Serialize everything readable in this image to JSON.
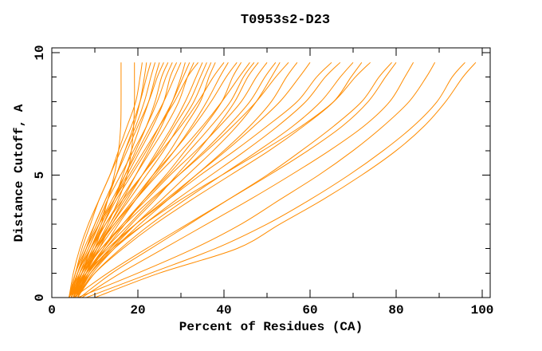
{
  "chart_data": {
    "type": "line",
    "title": "T0953s2-D23",
    "xlabel": "Percent of Residues (CA)",
    "ylabel": "Distance Cutoff, A",
    "xlim": [
      0,
      101.85
    ],
    "ylim": [
      0,
      10.195
    ],
    "grid": false,
    "legend": null,
    "line_color": "#FF8C00",
    "frame_color": "#000000",
    "text_color": "#000000",
    "x_major_ticks": [
      0,
      20,
      40,
      60,
      80,
      100
    ],
    "x_minor_ticks": [
      10,
      30,
      50,
      70,
      90
    ],
    "x_tick_labels": [
      "0",
      "20",
      "40",
      "60",
      "80",
      "100"
    ],
    "y_major_ticks": [
      0,
      5,
      10
    ],
    "y_minor_ticks": [
      1,
      2,
      3,
      4,
      6,
      7,
      8,
      9
    ],
    "y_tick_labels": [
      "0",
      "5",
      "10"
    ],
    "y_levels": [
      0,
      1,
      2,
      3,
      4,
      5,
      6,
      7,
      8,
      9,
      9.6
    ],
    "series_x": [
      [
        4,
        6,
        8.5,
        11,
        13,
        14.5,
        15.5,
        16,
        16.1,
        16.1,
        16.1
      ],
      [
        4.5,
        7,
        10,
        13,
        15.5,
        17.5,
        18.5,
        19,
        19.2,
        19.2,
        19.2
      ],
      [
        4,
        5.5,
        7,
        9,
        11,
        13.5,
        15.5,
        17.5,
        19.5,
        20.5,
        21
      ],
      [
        5,
        7,
        9,
        11.5,
        13,
        15,
        17,
        19,
        20.5,
        21.5,
        22
      ],
      [
        4,
        5,
        6.5,
        8.5,
        11,
        13.5,
        16,
        18.5,
        20.5,
        22,
        23
      ],
      [
        4.5,
        6,
        8,
        10,
        12.5,
        15,
        17,
        19.5,
        21.5,
        23,
        24
      ],
      [
        5.5,
        7.5,
        10,
        12,
        14.5,
        16.5,
        18.5,
        20.5,
        22.5,
        24,
        25
      ],
      [
        4,
        5.5,
        7.5,
        10,
        12.5,
        15,
        17.5,
        20,
        22.5,
        24.5,
        26
      ],
      [
        5,
        7,
        9.5,
        12,
        14.5,
        17,
        19.5,
        22,
        24,
        25.5,
        27
      ],
      [
        4.5,
        6,
        8,
        10.5,
        13,
        16,
        19,
        22,
        24.5,
        26.5,
        28
      ],
      [
        5,
        6.5,
        9,
        11.5,
        14.5,
        17.5,
        20.5,
        23.5,
        26,
        27.5,
        29
      ],
      [
        4,
        6,
        8.5,
        11,
        14,
        17,
        20,
        23,
        26,
        28.5,
        30
      ],
      [
        6,
        8,
        10.5,
        13.5,
        16.5,
        19.5,
        22.5,
        25.5,
        28,
        30,
        31
      ],
      [
        4.5,
        6.5,
        9,
        12,
        15,
        18.5,
        22,
        25,
        28,
        30.5,
        32
      ],
      [
        5,
        7,
        9.5,
        12.5,
        16,
        19.5,
        23,
        26.5,
        29.5,
        31.5,
        33
      ],
      [
        4,
        5.5,
        8,
        11,
        14.5,
        18,
        21.5,
        25,
        28.5,
        31.5,
        34
      ],
      [
        5.5,
        8,
        11,
        14,
        17.5,
        21,
        24.5,
        28,
        31,
        33.5,
        35
      ],
      [
        4.5,
        7,
        10,
        13.5,
        17,
        21,
        25,
        28.5,
        32,
        34.5,
        36
      ],
      [
        5,
        7.5,
        10.5,
        14,
        18,
        22,
        26,
        29.5,
        33,
        35.5,
        37
      ],
      [
        6,
        8.5,
        12,
        15.5,
        19.5,
        23.5,
        27.5,
        31,
        34.5,
        36.5,
        38
      ],
      [
        4,
        6,
        9,
        12.5,
        16.5,
        21,
        25.5,
        30,
        34,
        37.5,
        40
      ],
      [
        5,
        7.5,
        11,
        15,
        19.5,
        24,
        28.5,
        32.5,
        36,
        39,
        41
      ],
      [
        4.5,
        7,
        10.5,
        14.5,
        19,
        23.5,
        28.5,
        33,
        37,
        40.5,
        43
      ],
      [
        5.5,
        8.5,
        12.5,
        17,
        21.5,
        26.5,
        31,
        35.5,
        39.5,
        42,
        44
      ],
      [
        4,
        6.5,
        10,
        14.5,
        19.5,
        24.5,
        30,
        35,
        39.5,
        43.5,
        46
      ],
      [
        5,
        8,
        12,
        16.5,
        21.5,
        27,
        32,
        37,
        41.5,
        44.5,
        47
      ],
      [
        6,
        9,
        13.5,
        18.5,
        24,
        29,
        34,
        38.5,
        42.5,
        45.5,
        48
      ],
      [
        4.5,
        7.5,
        11.5,
        16.5,
        22,
        27.5,
        33.5,
        39,
        44,
        47.5,
        50
      ],
      [
        5,
        8,
        12.5,
        18,
        23.5,
        29.5,
        35.5,
        41,
        46,
        49.5,
        52
      ],
      [
        5.5,
        9,
        14,
        19.5,
        25.5,
        31.5,
        37.5,
        43,
        47.5,
        51,
        53
      ],
      [
        4,
        7,
        11.5,
        17,
        23,
        29.5,
        36,
        42,
        47.5,
        52,
        55
      ],
      [
        6,
        9.5,
        14.5,
        20.5,
        27,
        33.5,
        40,
        46,
        51,
        54.5,
        57
      ],
      [
        5,
        8.5,
        13.5,
        19.5,
        26.5,
        33.5,
        40.5,
        47,
        53,
        57.5,
        60
      ],
      [
        4.5,
        8,
        13,
        19.5,
        27,
        34.5,
        42.5,
        50,
        57,
        61.5,
        65
      ],
      [
        5,
        9,
        14.5,
        21.5,
        29,
        37,
        45,
        52.5,
        59,
        63.5,
        67
      ],
      [
        6,
        10,
        16,
        23,
        31,
        39.5,
        48,
        56,
        62.5,
        67,
        70
      ],
      [
        5.5,
        10,
        16.5,
        24,
        32.5,
        41.5,
        50.5,
        58.5,
        65.5,
        69.5,
        72
      ],
      [
        4,
        8,
        14,
        21.5,
        30,
        39.5,
        49,
        58,
        65.5,
        70.5,
        74
      ],
      [
        6.5,
        14,
        23,
        32,
        41,
        50,
        58,
        65.5,
        72,
        76,
        79
      ],
      [
        5,
        13,
        22,
        31.5,
        41,
        50.5,
        59.5,
        67.5,
        73.5,
        77.5,
        80
      ],
      [
        7,
        16,
        26,
        36,
        46,
        55.5,
        64.5,
        72.5,
        78.5,
        82,
        84
      ],
      [
        6,
        20,
        33,
        44,
        53,
        62,
        70,
        77,
        83,
        87,
        89
      ],
      [
        8,
        23,
        38,
        50,
        60,
        69,
        77,
        84,
        89.5,
        93,
        96
      ],
      [
        10,
        25,
        43,
        53,
        63,
        72,
        80,
        86.5,
        91.5,
        95.5,
        98.5
      ]
    ]
  }
}
